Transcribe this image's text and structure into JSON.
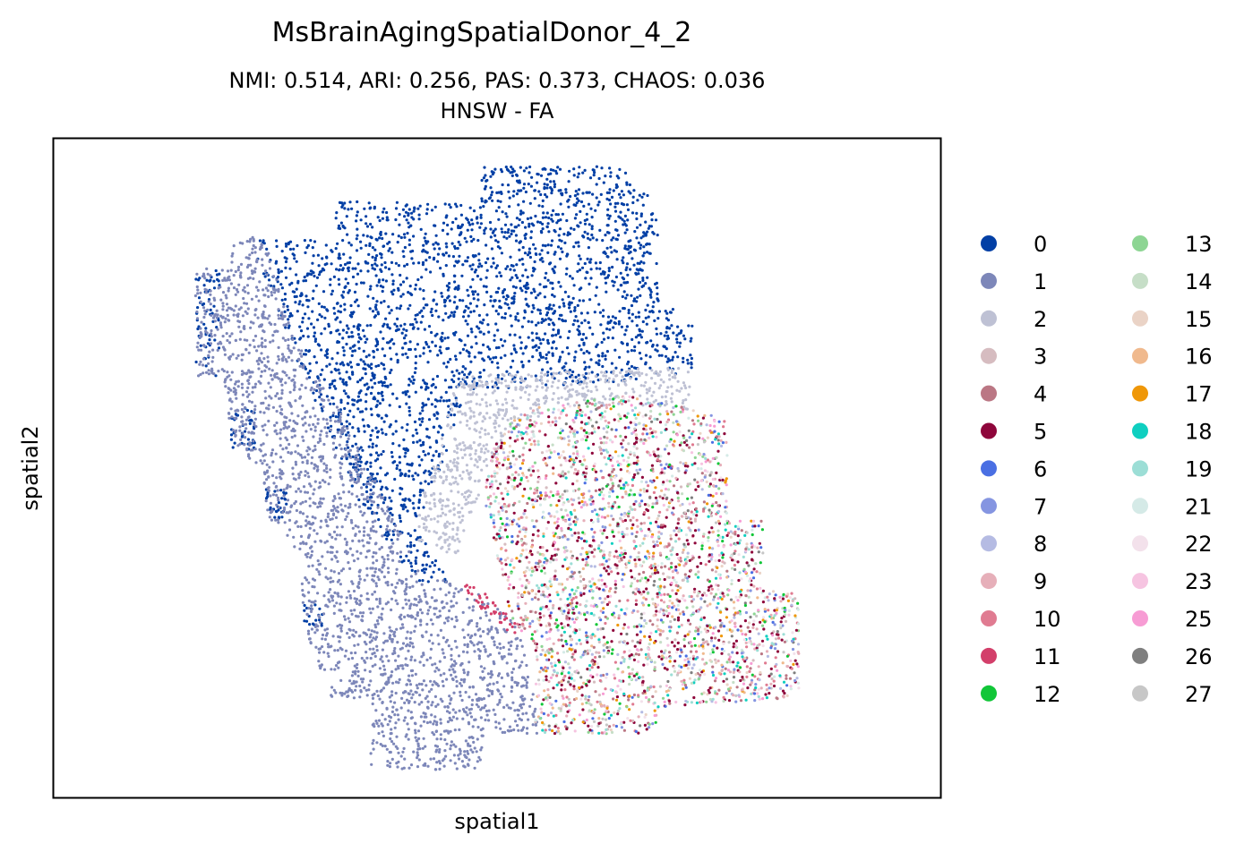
{
  "chart_data": {
    "type": "scatter",
    "title": "MsBrainAgingSpatialDonor_4_2",
    "subtitle_line1": "NMI: 0.514,  ARI: 0.256,  PAS: 0.373,  CHAOS: 0.036",
    "subtitle_line2": "HNSW - FA",
    "xlabel": "spatial1",
    "ylabel": "spatial2",
    "ticks_shown": false,
    "grid": false,
    "legend_position": "right",
    "legend": [
      {
        "label": "0",
        "color": "#023fa5"
      },
      {
        "label": "1",
        "color": "#7d87b9"
      },
      {
        "label": "2",
        "color": "#bec1d4"
      },
      {
        "label": "3",
        "color": "#d6bcc0"
      },
      {
        "label": "4",
        "color": "#bb7784"
      },
      {
        "label": "5",
        "color": "#8e063b"
      },
      {
        "label": "6",
        "color": "#4a6fe3"
      },
      {
        "label": "7",
        "color": "#8595e1"
      },
      {
        "label": "8",
        "color": "#b5bbe3"
      },
      {
        "label": "9",
        "color": "#e6afb9"
      },
      {
        "label": "10",
        "color": "#e07b91"
      },
      {
        "label": "11",
        "color": "#d33f6a"
      },
      {
        "label": "12",
        "color": "#11c638"
      },
      {
        "label": "13",
        "color": "#8dd593"
      },
      {
        "label": "14",
        "color": "#c6dec7"
      },
      {
        "label": "15",
        "color": "#ead3c6"
      },
      {
        "label": "16",
        "color": "#f0b98d"
      },
      {
        "label": "17",
        "color": "#ef9708"
      },
      {
        "label": "18",
        "color": "#0fcfc0"
      },
      {
        "label": "19",
        "color": "#9cded6"
      },
      {
        "label": "21",
        "color": "#d5eae7"
      },
      {
        "label": "22",
        "color": "#f3e1eb"
      },
      {
        "label": "23",
        "color": "#f6c4e1"
      },
      {
        "label": "25",
        "color": "#f79cd4"
      },
      {
        "label": "26",
        "color": "#7f7f7f"
      },
      {
        "label": "27",
        "color": "#c7c7c7"
      }
    ]
  }
}
